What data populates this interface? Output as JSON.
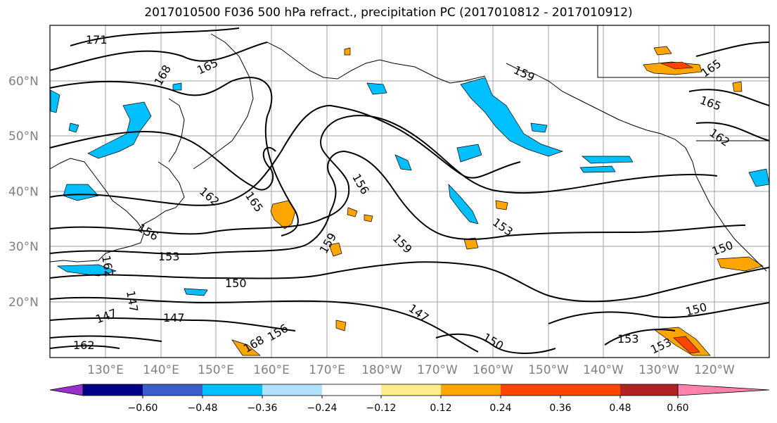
{
  "title": "2017010500 F036 500 hPa refract., precipitation PC (2017010812 - 2017010912)",
  "lat_labels": [
    "60°N",
    "50°N",
    "40°N",
    "30°N",
    "20°N"
  ],
  "lon_labels": [
    "130°E",
    "140°E",
    "150°E",
    "160°E",
    "170°E",
    "180°W",
    "170°W",
    "160°W",
    "150°W",
    "140°W",
    "130°W",
    "120°W"
  ],
  "contour_labels": [
    "171",
    "168",
    "165",
    "165",
    "162",
    "159",
    "156",
    "156",
    "159",
    "159",
    "165",
    "162",
    "162",
    "153",
    "153",
    "150",
    "150",
    "147",
    "147",
    "147",
    "147",
    "150",
    "150",
    "153",
    "153",
    "156",
    "168",
    "165",
    "162"
  ],
  "colorbar": {
    "colors": [
      "#9932CC",
      "#00008B",
      "#3A5FCD",
      "#00BFFF",
      "#B0E2FF",
      "#FFFFFF",
      "#FFEC8B",
      "#FFA500",
      "#FF4500",
      "#B22222",
      "#FF82AB"
    ],
    "tick_labels": [
      "−0.60",
      "−0.48",
      "−0.36",
      "−0.24",
      "−0.12",
      "0.12",
      "0.24",
      "0.36",
      "0.48",
      "0.60"
    ]
  }
}
